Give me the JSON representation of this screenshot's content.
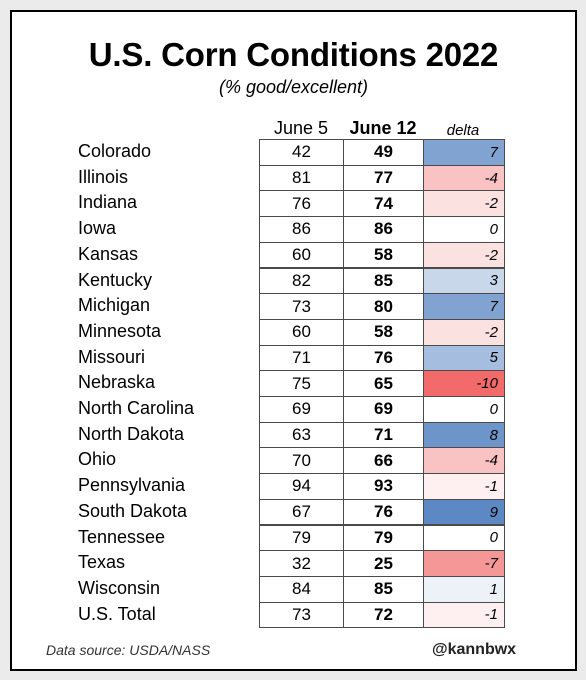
{
  "chart_data": {
    "type": "table",
    "title": "U.S. Corn Conditions 2022",
    "subtitle": "(% good/excellent)",
    "columns": [
      "June 5",
      "June 12",
      "delta"
    ],
    "rows": [
      {
        "state": "Colorado",
        "june5": 42,
        "june12": 49,
        "delta": 7
      },
      {
        "state": "Illinois",
        "june5": 81,
        "june12": 77,
        "delta": -4
      },
      {
        "state": "Indiana",
        "june5": 76,
        "june12": 74,
        "delta": -2
      },
      {
        "state": "Iowa",
        "june5": 86,
        "june12": 86,
        "delta": 0
      },
      {
        "state": "Kansas",
        "june5": 60,
        "june12": 58,
        "delta": -2
      },
      {
        "state": "Kentucky",
        "june5": 82,
        "june12": 85,
        "delta": 3
      },
      {
        "state": "Michigan",
        "june5": 73,
        "june12": 80,
        "delta": 7
      },
      {
        "state": "Minnesota",
        "june5": 60,
        "june12": 58,
        "delta": -2
      },
      {
        "state": "Missouri",
        "june5": 71,
        "june12": 76,
        "delta": 5
      },
      {
        "state": "Nebraska",
        "june5": 75,
        "june12": 65,
        "delta": -10
      },
      {
        "state": "North Carolina",
        "june5": 69,
        "june12": 69,
        "delta": 0
      },
      {
        "state": "North Dakota",
        "june5": 63,
        "june12": 71,
        "delta": 8
      },
      {
        "state": "Ohio",
        "june5": 70,
        "june12": 66,
        "delta": -4
      },
      {
        "state": "Pennsylvania",
        "june5": 94,
        "june12": 93,
        "delta": -1
      },
      {
        "state": "South Dakota",
        "june5": 67,
        "june12": 76,
        "delta": 9
      },
      {
        "state": "Tennessee",
        "june5": 79,
        "june12": 79,
        "delta": 0
      },
      {
        "state": "Texas",
        "june5": 32,
        "june12": 25,
        "delta": -7
      },
      {
        "state": "Wisconsin",
        "june5": 84,
        "june12": 85,
        "delta": 1
      },
      {
        "state": "U.S. Total",
        "june5": 73,
        "june12": 72,
        "delta": -1
      }
    ],
    "colors": {
      "positive": "#4a7bbd",
      "negative": "#f26a6a",
      "neutral": "#ffffff"
    }
  },
  "footer": {
    "source": "Data source: USDA/NASS",
    "handle": "@kannbwx"
  }
}
